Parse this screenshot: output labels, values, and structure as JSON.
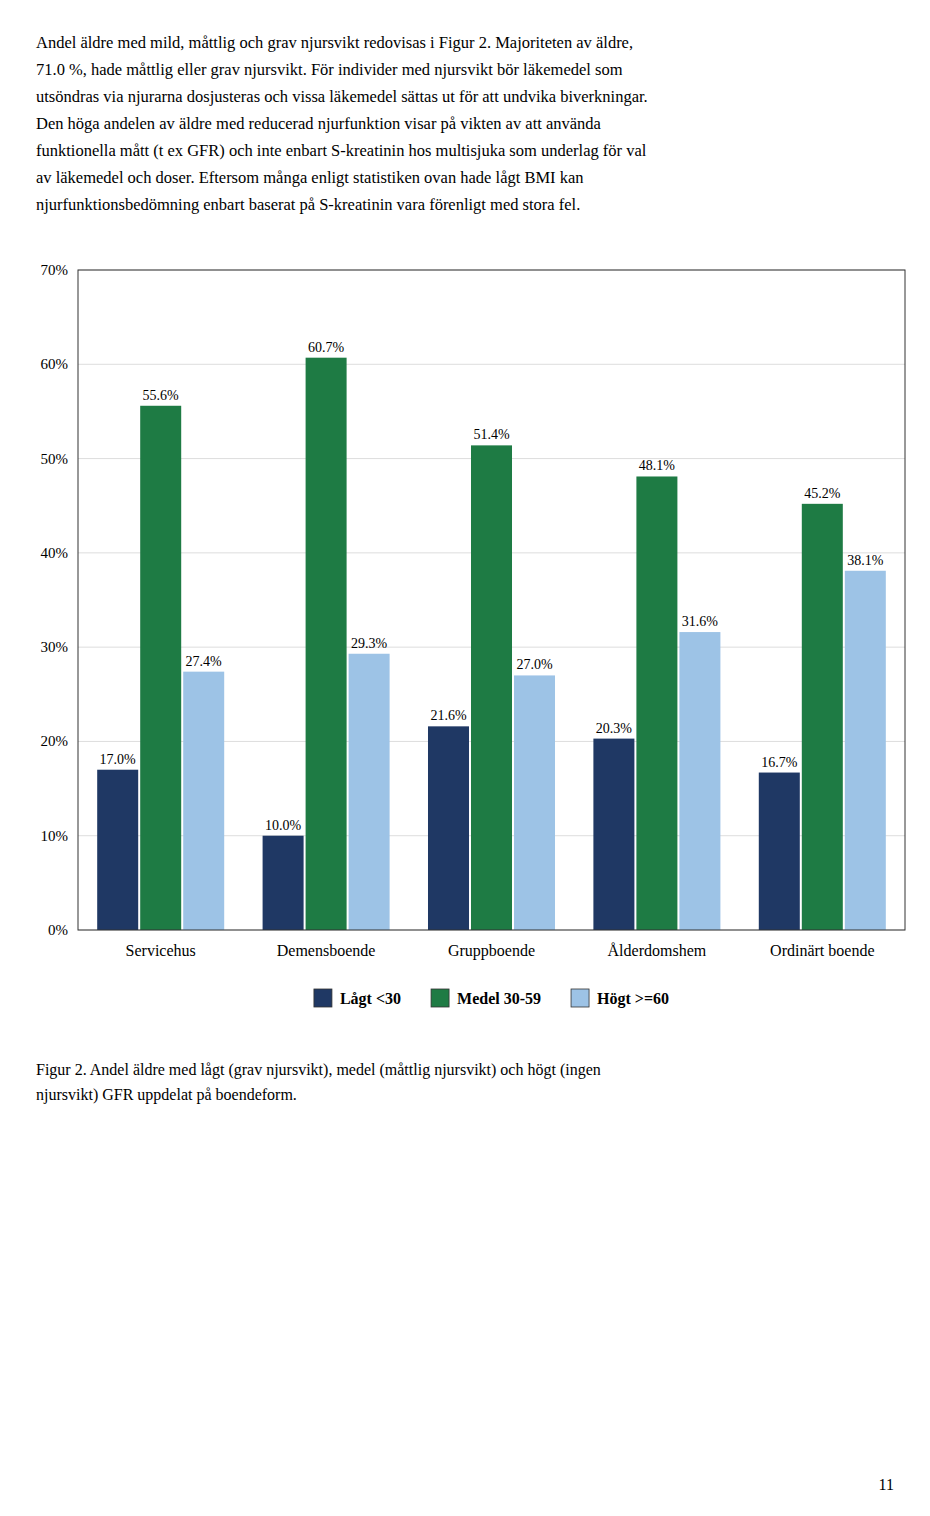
{
  "chart_data": {
    "type": "bar",
    "paragraph": [
      "Andel äldre med mild, måttlig och grav njursvikt redovisas i Figur 2. Majoriteten av äldre,",
      "71.0 %, hade måttlig eller grav njursvikt. För individer med njursvikt bör läkemedel som",
      "utsöndras via njurarna dosjusteras och vissa läkemedel sättas ut för att undvika biverkningar.",
      "Den höga andelen av äldre med reducerad njurfunktion visar på vikten av att använda",
      "funktionella mått (t ex GFR) och inte enbart S-kreatinin hos multisjuka som underlag för val",
      "av läkemedel och doser. Eftersom många enligt statistiken ovan hade lågt BMI kan",
      "njurfunktionsbedömning enbart baserat på S-kreatinin vara förenligt med stora fel."
    ],
    "caption": "Figur 2. Andel äldre med lågt (grav njursvikt), medel (måttlig njursvikt) och högt (ingen\nnjursvikt) GFR uppdelat på boendeform.",
    "page_number": "11",
    "categories": [
      "Servicehus",
      "Demensboende",
      "Gruppboende",
      "Ålderdomshem",
      "Ordinärt boende"
    ],
    "series": [
      {
        "name": "Lågt <30",
        "color": "#1F3864",
        "values": [
          17.0,
          10.0,
          21.6,
          20.3,
          16.7
        ],
        "value_labels": [
          "17.0%",
          "10.0%",
          "21.6%",
          "20.3%",
          "16.7%"
        ]
      },
      {
        "name": "Medel 30-59",
        "color": "#1E7B44",
        "values": [
          55.6,
          60.7,
          51.4,
          48.1,
          45.2
        ],
        "value_labels": [
          "55.6%",
          "60.7%",
          "51.4%",
          "48.1%",
          "45.2%"
        ]
      },
      {
        "name": "Högt >=60",
        "color": "#9DC3E6",
        "values": [
          27.4,
          29.3,
          27.0,
          31.6,
          38.1
        ],
        "value_labels": [
          "27.4%",
          "29.3%",
          "27.0%",
          "31.6%",
          "38.1%"
        ]
      }
    ],
    "ylim": [
      0,
      70
    ],
    "yticks": [
      {
        "value": 0,
        "label": "0%"
      },
      {
        "value": 10,
        "label": "10%"
      },
      {
        "value": 20,
        "label": "20%"
      },
      {
        "value": 30,
        "label": "30%"
      },
      {
        "value": 40,
        "label": "40%"
      },
      {
        "value": 50,
        "label": "50%"
      },
      {
        "value": 60,
        "label": "60%"
      },
      {
        "value": 70,
        "label": "70%"
      }
    ],
    "grid": true,
    "data_labels": true,
    "legend": "bottom"
  }
}
